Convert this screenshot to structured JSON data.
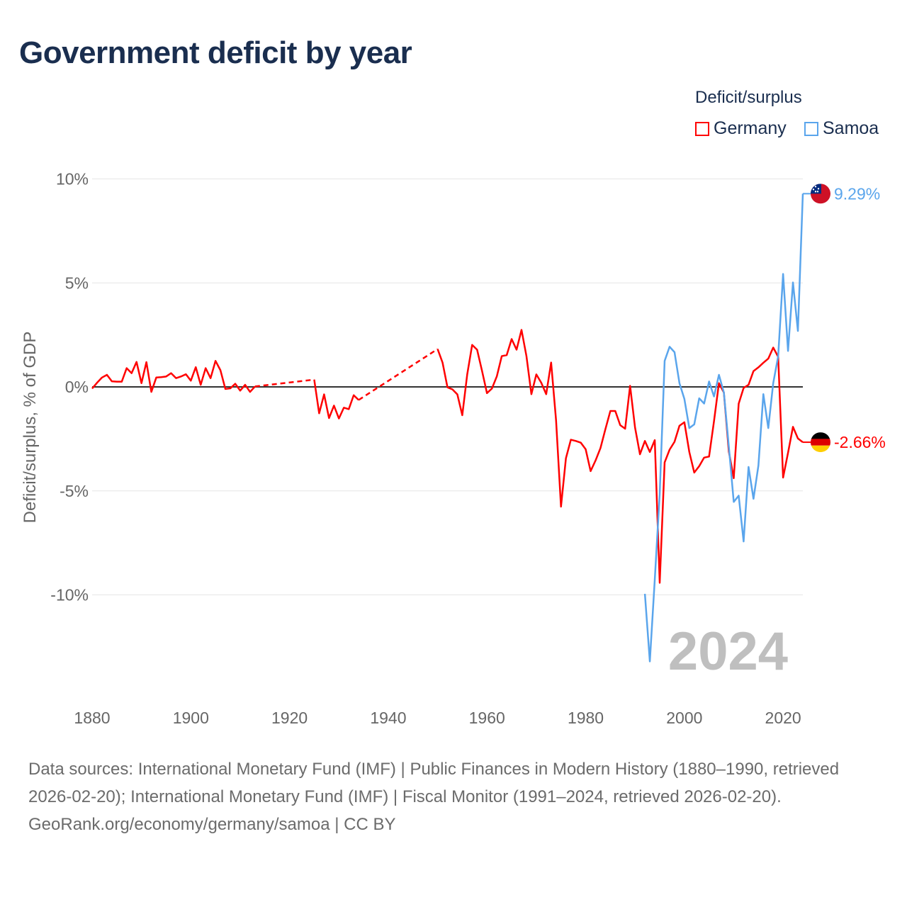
{
  "title": "Government deficit by year",
  "legend": {
    "title": "Deficit/surplus",
    "items": [
      {
        "label": "Germany",
        "color": "#ff0000"
      },
      {
        "label": "Samoa",
        "color": "#5aa5ec"
      }
    ]
  },
  "chart_data": {
    "type": "line",
    "title": "Government deficit by year",
    "xlabel": "",
    "ylabel": "Deficit/surplus, % of GDP",
    "xlim": [
      1880,
      2024
    ],
    "ylim": [
      -13.5,
      10.5
    ],
    "x_ticks": [
      1880,
      1900,
      1920,
      1940,
      1960,
      1980,
      2000,
      2020
    ],
    "y_ticks": [
      10,
      5,
      0,
      -5,
      -10
    ],
    "y_tick_labels": [
      "10%",
      "5%",
      "0%",
      "-5%",
      "-10%"
    ],
    "grid": true,
    "legend_position": "top-right",
    "year_watermark": "2024",
    "series": [
      {
        "name": "Germany",
        "color": "#ff0000",
        "end_label": "-2.66%",
        "flag": "germany-flag",
        "points": [
          [
            1880,
            -0.08
          ],
          [
            1881,
            0.2
          ],
          [
            1882,
            0.45
          ],
          [
            1883,
            0.58
          ],
          [
            1884,
            0.27
          ],
          [
            1885,
            0.25
          ],
          [
            1886,
            0.25
          ],
          [
            1887,
            0.9
          ],
          [
            1888,
            0.66
          ],
          [
            1889,
            1.2
          ],
          [
            1890,
            0.18
          ],
          [
            1891,
            1.19
          ],
          [
            1892,
            -0.24
          ],
          [
            1893,
            0.45
          ],
          [
            1894,
            0.47
          ],
          [
            1895,
            0.5
          ],
          [
            1896,
            0.66
          ],
          [
            1897,
            0.42
          ],
          [
            1898,
            0.5
          ],
          [
            1899,
            0.61
          ],
          [
            1900,
            0.3
          ],
          [
            1901,
            0.95
          ],
          [
            1902,
            0.1
          ],
          [
            1903,
            0.9
          ],
          [
            1904,
            0.42
          ],
          [
            1905,
            1.25
          ],
          [
            1906,
            0.8
          ],
          [
            1907,
            -0.1
          ],
          [
            1908,
            -0.07
          ],
          [
            1909,
            0.15
          ],
          [
            1910,
            -0.18
          ],
          [
            1911,
            0.1
          ],
          [
            1912,
            -0.24
          ],
          [
            1913,
            0.02
          ],
          [
            1925,
            0.35
          ],
          [
            1926,
            -1.27
          ],
          [
            1927,
            -0.36
          ],
          [
            1928,
            -1.5
          ],
          [
            1929,
            -0.9
          ],
          [
            1930,
            -1.52
          ],
          [
            1931,
            -1.0
          ],
          [
            1932,
            -1.07
          ],
          [
            1933,
            -0.4
          ],
          [
            1934,
            -0.63
          ],
          [
            1950,
            1.82
          ],
          [
            1951,
            1.17
          ],
          [
            1952,
            -0.02
          ],
          [
            1953,
            -0.12
          ],
          [
            1954,
            -0.36
          ],
          [
            1955,
            -1.36
          ],
          [
            1956,
            0.6
          ],
          [
            1957,
            2.02
          ],
          [
            1958,
            1.79
          ],
          [
            1959,
            0.77
          ],
          [
            1960,
            -0.3
          ],
          [
            1961,
            -0.08
          ],
          [
            1962,
            0.51
          ],
          [
            1963,
            1.48
          ],
          [
            1964,
            1.53
          ],
          [
            1965,
            2.3
          ],
          [
            1966,
            1.79
          ],
          [
            1967,
            2.74
          ],
          [
            1968,
            1.48
          ],
          [
            1969,
            -0.35
          ],
          [
            1970,
            0.6
          ],
          [
            1971,
            0.2
          ],
          [
            1972,
            -0.35
          ],
          [
            1973,
            1.17
          ],
          [
            1974,
            -1.6
          ],
          [
            1975,
            -5.76
          ],
          [
            1976,
            -3.43
          ],
          [
            1977,
            -2.54
          ],
          [
            1978,
            -2.6
          ],
          [
            1979,
            -2.68
          ],
          [
            1980,
            -3.0
          ],
          [
            1981,
            -4.05
          ],
          [
            1982,
            -3.54
          ],
          [
            1983,
            -2.94
          ],
          [
            1984,
            -2.03
          ],
          [
            1985,
            -1.16
          ],
          [
            1986,
            -1.16
          ],
          [
            1987,
            -1.84
          ],
          [
            1988,
            -2.01
          ],
          [
            1989,
            0.05
          ],
          [
            1990,
            -1.95
          ],
          [
            1991,
            -3.24
          ],
          [
            1992,
            -2.6
          ],
          [
            1993,
            -3.13
          ],
          [
            1994,
            -2.56
          ],
          [
            1995,
            -9.42
          ],
          [
            1996,
            -3.63
          ],
          [
            1997,
            -3.02
          ],
          [
            1998,
            -2.64
          ],
          [
            1999,
            -1.87
          ],
          [
            2000,
            -1.7
          ],
          [
            2001,
            -3.13
          ],
          [
            2002,
            -4.12
          ],
          [
            2003,
            -3.81
          ],
          [
            2004,
            -3.4
          ],
          [
            2005,
            -3.35
          ],
          [
            2006,
            -1.65
          ],
          [
            2007,
            0.18
          ],
          [
            2008,
            -0.27
          ],
          [
            2009,
            -3.1
          ],
          [
            2010,
            -4.39
          ],
          [
            2011,
            -0.81
          ],
          [
            2012,
            -0.05
          ],
          [
            2013,
            0.1
          ],
          [
            2014,
            0.76
          ],
          [
            2015,
            0.94
          ],
          [
            2016,
            1.16
          ],
          [
            2017,
            1.36
          ],
          [
            2018,
            1.89
          ],
          [
            2019,
            1.45
          ],
          [
            2020,
            -4.36
          ],
          [
            2021,
            -3.17
          ],
          [
            2022,
            -1.92
          ],
          [
            2023,
            -2.48
          ],
          [
            2024,
            -2.66
          ]
        ]
      },
      {
        "name": "Samoa",
        "color": "#5aa5ec",
        "end_label": "9.29%",
        "flag": "samoa-flag",
        "points": [
          [
            1992,
            -9.95
          ],
          [
            1993,
            -13.2
          ],
          [
            1994,
            -9.27
          ],
          [
            1995,
            -5.15
          ],
          [
            1996,
            1.25
          ],
          [
            1997,
            1.93
          ],
          [
            1998,
            1.67
          ],
          [
            1999,
            0.18
          ],
          [
            2000,
            -0.58
          ],
          [
            2001,
            -1.98
          ],
          [
            2002,
            -1.8
          ],
          [
            2003,
            -0.55
          ],
          [
            2004,
            -0.8
          ],
          [
            2005,
            0.26
          ],
          [
            2006,
            -0.46
          ],
          [
            2007,
            0.58
          ],
          [
            2008,
            -0.27
          ],
          [
            2009,
            -2.86
          ],
          [
            2010,
            -5.53
          ],
          [
            2011,
            -5.23
          ],
          [
            2012,
            -7.43
          ],
          [
            2013,
            -3.85
          ],
          [
            2014,
            -5.38
          ],
          [
            2015,
            -3.78
          ],
          [
            2016,
            -0.35
          ],
          [
            2017,
            -1.98
          ],
          [
            2018,
            0.18
          ],
          [
            2019,
            1.47
          ],
          [
            2020,
            5.43
          ],
          [
            2021,
            1.73
          ],
          [
            2022,
            5.02
          ],
          [
            2023,
            2.69
          ],
          [
            2024,
            9.29
          ]
        ]
      }
    ]
  },
  "footer": {
    "sources": "Data sources: International Monetary Fund (IMF) | Public Finances in Modern History (1880–1990, retrieved 2026-02-20); International Monetary Fund (IMF) | Fiscal Monitor (1991–2024, retrieved 2026-02-20).",
    "credit": "GeoRank.org/economy/germany/samoa | CC BY"
  }
}
